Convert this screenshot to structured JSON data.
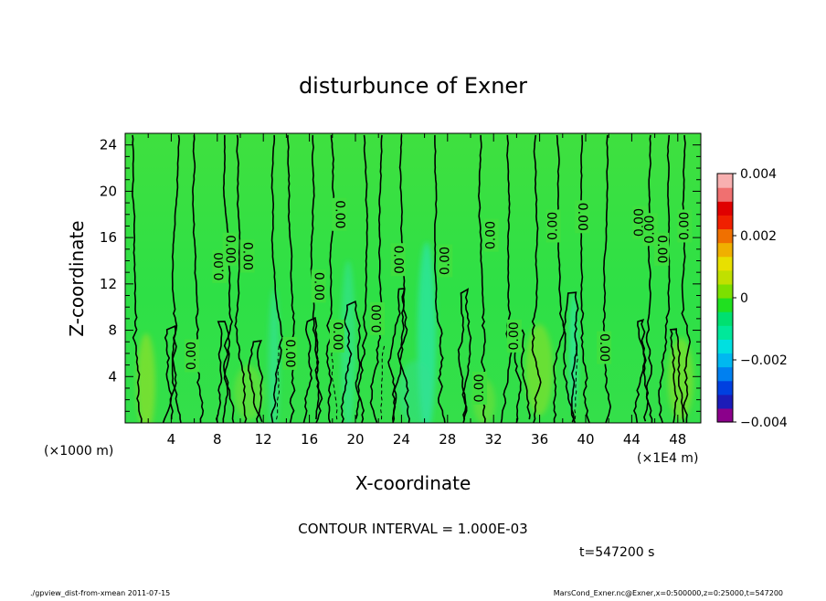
{
  "chart_data": {
    "type": "heatmap",
    "title": "disturbunce of Exner",
    "xlabel": "X-coordinate",
    "ylabel": "Z-coordinate",
    "x_unit": "(×1000 m)",
    "x_unit_right": "(×1E4 m)",
    "xlim": [
      0,
      50
    ],
    "ylim": [
      0,
      25
    ],
    "x_ticks": [
      "4",
      "8",
      "12",
      "16",
      "20",
      "24",
      "28",
      "32",
      "36",
      "40",
      "44",
      "48"
    ],
    "y_ticks": [
      "4",
      "8",
      "12",
      "16",
      "20",
      "24"
    ],
    "colorbar": {
      "range": [
        -0.004,
        0.004
      ],
      "tick_labels": [
        "0.004",
        "0.002",
        "0",
        "−0.002",
        "−0.004"
      ],
      "tick_values": [
        0.004,
        0.002,
        0,
        -0.002,
        -0.004
      ],
      "colors": [
        "#8b008b",
        "#1c1cb8",
        "#0040e0",
        "#0080f0",
        "#00b8f0",
        "#00e0e0",
        "#00e89a",
        "#00e070",
        "#20e020",
        "#7ce000",
        "#c0e000",
        "#e8e000",
        "#f0b000",
        "#f07000",
        "#f02000",
        "#e00000",
        "#f07070",
        "#f8b0b0"
      ]
    },
    "contour_interval": "CONTOUR INTERVAL = 1.000E-03",
    "contour_label": "0.00",
    "contour_label_x": [
      5.8,
      8.2,
      9.1,
      10.6,
      14.3,
      16.8,
      18.4,
      18.6,
      21.9,
      23.7,
      27.8,
      30.8,
      31.8,
      33.8,
      37.2,
      39.7,
      41.6,
      44.7,
      45.6,
      46.6,
      48.6
    ],
    "contour_label_z": [
      5.8,
      13.5,
      15.0,
      14.4,
      6.0,
      11.8,
      7.5,
      18.0,
      9.0,
      14.1,
      14.0,
      3.0,
      16.2,
      7.5,
      17.0,
      17.8,
      6.5,
      17.3,
      16.7,
      15.0,
      17.0
    ],
    "contour_label_rotation": [
      -90,
      -90,
      90,
      90,
      90,
      90,
      90,
      90,
      -90,
      90,
      -90,
      -90,
      -90,
      -90,
      -90,
      90,
      90,
      -90,
      -90,
      90,
      -90
    ],
    "time_label": "t=547200 s",
    "footer_left": "./gpview_dist-from-xmean   2011-07-15",
    "footer_right": "MarsCond_Exner.nc@Exner,x=0:500000,z=0:25000,t=547200"
  }
}
